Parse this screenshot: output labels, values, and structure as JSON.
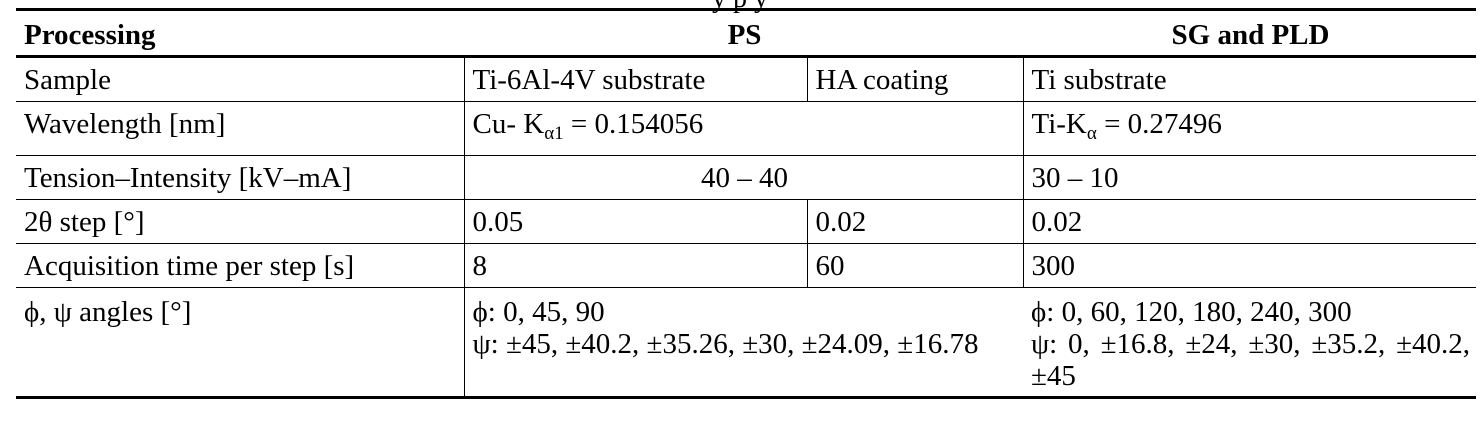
{
  "caption_fragment": "y                        p                                y",
  "header": {
    "processing": "Processing",
    "ps": "PS",
    "sg_pld": "SG and PLD"
  },
  "rows": {
    "sample": {
      "label": "Sample",
      "ps_substrate": "Ti-6Al-4V substrate",
      "ps_coating": "HA coating",
      "sg_pld": "Ti substrate"
    },
    "wavelength": {
      "label": "Wavelength [nm]",
      "ps_prefix": "Cu- K",
      "ps_sub": "α1",
      "ps_value": " = 0.154056",
      "sg_prefix": "Ti-K",
      "sg_sub": "α",
      "sg_value": " = 0.27496"
    },
    "tension": {
      "label": "Tension–Intensity [kV–mA]",
      "ps": "40 – 40",
      "sg_pld": "30 – 10"
    },
    "step": {
      "label": "2θ step [°]",
      "ps_substrate": "0.05",
      "ps_coating": "0.02",
      "sg_pld": "0.02"
    },
    "acq": {
      "label": "Acquisition time per step [s]",
      "ps_substrate": "8",
      "ps_coating": "60",
      "sg_pld": "300"
    },
    "angles": {
      "label": "ϕ, ψ angles [°]",
      "ps_phi": "ϕ: 0, 45, 90",
      "ps_psi": "ψ: ±45, ±40.2, ±35.26, ±30, ±24.09, ±16.78",
      "sg_phi": "ϕ: 0, 60, 120, 180, 240, 300",
      "sg_psi": "ψ:   0,   ±16.8,   ±24,   ±30, ±35.2, ±40.2, ±45"
    }
  }
}
